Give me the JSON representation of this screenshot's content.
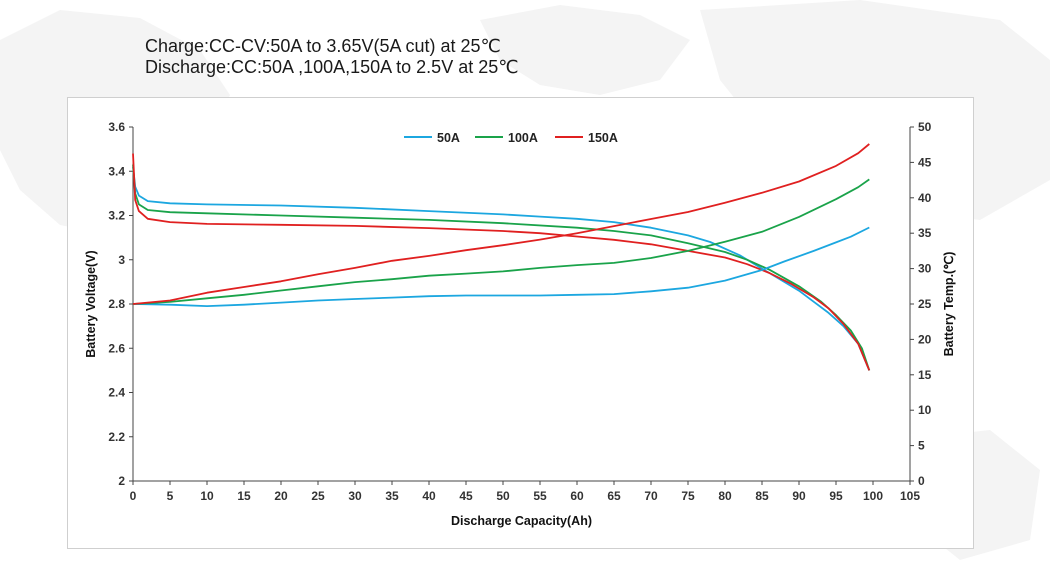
{
  "heading": {
    "line1": "Charge:CC-CV:50A to 3.65V(5A cut) at 25℃",
    "line2": "Discharge:CC:50A ,100A,150A to 2.5V at 25℃"
  },
  "colors": {
    "a50": "#1ca7e0",
    "a100": "#1aa34a",
    "a150": "#e02020",
    "axis": "#444444",
    "map": "#f3f3f3"
  },
  "chart_data": {
    "type": "line",
    "xlabel": "Discharge Capacity(Ah)",
    "ylabel": "Battery Voltage(V)",
    "y2label": "Battery Temp.(℃)",
    "xlim": [
      0,
      105
    ],
    "ylim": [
      2,
      3.6
    ],
    "y2lim": [
      0,
      50
    ],
    "grid": false,
    "legend_position": "top-center",
    "x_ticks": [
      "0",
      "5",
      "10",
      "15",
      "20",
      "25",
      "30",
      "35",
      "40",
      "45",
      "50",
      "55",
      "60",
      "65",
      "70",
      "75",
      "80",
      "85",
      "90",
      "95",
      "100",
      "105"
    ],
    "y_ticks": [
      "2",
      "2.2",
      "2.4",
      "2.6",
      "2.8",
      "3",
      "3.2",
      "3.4",
      "3.6"
    ],
    "y2_ticks": [
      "0",
      "5",
      "10",
      "15",
      "20",
      "25",
      "30",
      "35",
      "40",
      "45",
      "50"
    ],
    "legend": [
      "50A",
      "100A",
      "150A"
    ],
    "series": [
      {
        "name": "50A",
        "kind": "voltage",
        "axis": "left",
        "color_key": "a50",
        "points": [
          [
            0,
            3.42
          ],
          [
            0.3,
            3.33
          ],
          [
            0.8,
            3.29
          ],
          [
            2,
            3.265
          ],
          [
            5,
            3.255
          ],
          [
            10,
            3.25
          ],
          [
            20,
            3.245
          ],
          [
            30,
            3.235
          ],
          [
            40,
            3.22
          ],
          [
            50,
            3.205
          ],
          [
            55,
            3.195
          ],
          [
            60,
            3.185
          ],
          [
            65,
            3.17
          ],
          [
            70,
            3.145
          ],
          [
            75,
            3.11
          ],
          [
            78,
            3.08
          ],
          [
            80,
            3.05
          ],
          [
            82,
            3.02
          ],
          [
            85,
            2.96
          ],
          [
            88,
            2.9
          ],
          [
            90,
            2.86
          ],
          [
            92,
            2.81
          ],
          [
            94,
            2.76
          ],
          [
            96,
            2.7
          ],
          [
            98,
            2.62
          ],
          [
            99.5,
            2.5
          ]
        ]
      },
      {
        "name": "100A",
        "kind": "voltage",
        "axis": "left",
        "color_key": "a100",
        "points": [
          [
            0,
            3.43
          ],
          [
            0.3,
            3.3
          ],
          [
            0.8,
            3.25
          ],
          [
            2,
            3.225
          ],
          [
            5,
            3.215
          ],
          [
            10,
            3.21
          ],
          [
            20,
            3.2
          ],
          [
            30,
            3.19
          ],
          [
            40,
            3.18
          ],
          [
            50,
            3.165
          ],
          [
            60,
            3.145
          ],
          [
            65,
            3.13
          ],
          [
            70,
            3.11
          ],
          [
            75,
            3.075
          ],
          [
            80,
            3.035
          ],
          [
            83,
            3.0
          ],
          [
            86,
            2.955
          ],
          [
            90,
            2.88
          ],
          [
            93,
            2.81
          ],
          [
            95,
            2.75
          ],
          [
            97,
            2.68
          ],
          [
            98.5,
            2.6
          ],
          [
            99.5,
            2.5
          ]
        ]
      },
      {
        "name": "150A",
        "kind": "voltage",
        "axis": "left",
        "color_key": "a150",
        "points": [
          [
            0,
            3.48
          ],
          [
            0.3,
            3.27
          ],
          [
            0.8,
            3.22
          ],
          [
            2,
            3.185
          ],
          [
            5,
            3.17
          ],
          [
            10,
            3.162
          ],
          [
            20,
            3.158
          ],
          [
            30,
            3.153
          ],
          [
            40,
            3.143
          ],
          [
            50,
            3.13
          ],
          [
            55,
            3.12
          ],
          [
            60,
            3.105
          ],
          [
            65,
            3.09
          ],
          [
            70,
            3.07
          ],
          [
            75,
            3.04
          ],
          [
            80,
            3.01
          ],
          [
            83,
            2.98
          ],
          [
            86,
            2.94
          ],
          [
            89,
            2.89
          ],
          [
            92,
            2.83
          ],
          [
            94,
            2.78
          ],
          [
            96,
            2.71
          ],
          [
            98,
            2.62
          ],
          [
            99.5,
            2.5
          ]
        ]
      },
      {
        "name": "50A",
        "kind": "temperature",
        "axis": "right",
        "color_key": "a50",
        "points": [
          [
            0,
            25
          ],
          [
            5,
            24.9
          ],
          [
            10,
            24.7
          ],
          [
            15,
            24.9
          ],
          [
            20,
            25.2
          ],
          [
            25,
            25.5
          ],
          [
            30,
            25.7
          ],
          [
            35,
            25.9
          ],
          [
            40,
            26.1
          ],
          [
            45,
            26.2
          ],
          [
            50,
            26.2
          ],
          [
            55,
            26.2
          ],
          [
            60,
            26.3
          ],
          [
            65,
            26.4
          ],
          [
            70,
            26.8
          ],
          [
            75,
            27.3
          ],
          [
            80,
            28.3
          ],
          [
            85,
            29.8
          ],
          [
            88,
            31
          ],
          [
            92,
            32.5
          ],
          [
            95,
            33.7
          ],
          [
            97,
            34.5
          ],
          [
            99.5,
            35.8
          ]
        ]
      },
      {
        "name": "100A",
        "kind": "temperature",
        "axis": "right",
        "color_key": "a100",
        "points": [
          [
            0,
            25
          ],
          [
            5,
            25.3
          ],
          [
            10,
            25.8
          ],
          [
            15,
            26.3
          ],
          [
            20,
            26.9
          ],
          [
            25,
            27.5
          ],
          [
            30,
            28.1
          ],
          [
            35,
            28.5
          ],
          [
            40,
            29
          ],
          [
            45,
            29.3
          ],
          [
            50,
            29.6
          ],
          [
            55,
            30.1
          ],
          [
            60,
            30.5
          ],
          [
            65,
            30.8
          ],
          [
            70,
            31.5
          ],
          [
            75,
            32.5
          ],
          [
            80,
            33.8
          ],
          [
            85,
            35.2
          ],
          [
            90,
            37.3
          ],
          [
            95,
            39.8
          ],
          [
            98,
            41.5
          ],
          [
            99.5,
            42.6
          ]
        ]
      },
      {
        "name": "150A",
        "kind": "temperature",
        "axis": "right",
        "color_key": "a150",
        "points": [
          [
            0,
            25
          ],
          [
            5,
            25.5
          ],
          [
            10,
            26.6
          ],
          [
            15,
            27.4
          ],
          [
            20,
            28.2
          ],
          [
            25,
            29.2
          ],
          [
            30,
            30.1
          ],
          [
            35,
            31.1
          ],
          [
            40,
            31.8
          ],
          [
            45,
            32.6
          ],
          [
            50,
            33.3
          ],
          [
            55,
            34.1
          ],
          [
            60,
            35
          ],
          [
            65,
            36
          ],
          [
            70,
            37
          ],
          [
            75,
            38
          ],
          [
            80,
            39.3
          ],
          [
            85,
            40.7
          ],
          [
            90,
            42.3
          ],
          [
            95,
            44.5
          ],
          [
            98,
            46.3
          ],
          [
            99.5,
            47.6
          ]
        ]
      }
    ]
  }
}
